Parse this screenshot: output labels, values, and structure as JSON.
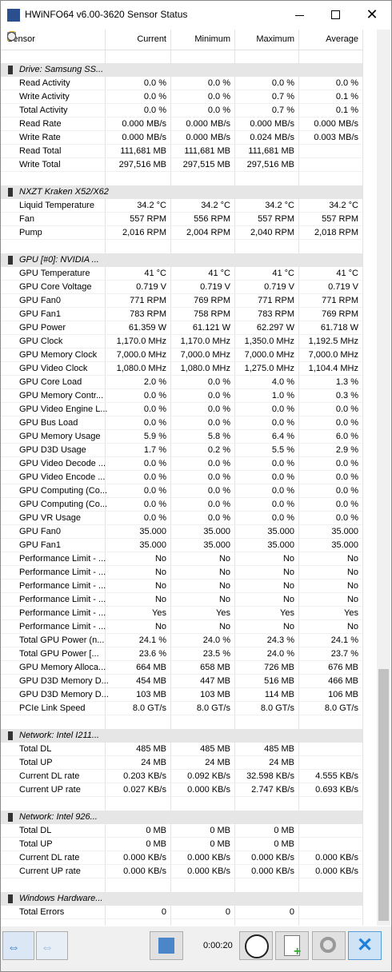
{
  "window": {
    "title": "HWiNFO64 v6.00-3620 Sensor Status"
  },
  "table": {
    "columns": [
      "Sensor",
      "Current",
      "Minimum",
      "Maximum",
      "Average"
    ],
    "sections": [
      {
        "name": "Drive: Samsung SS...",
        "rows": [
          [
            "Read Activity",
            "0.0 %",
            "0.0 %",
            "0.0 %",
            "0.0 %"
          ],
          [
            "Write Activity",
            "0.0 %",
            "0.0 %",
            "0.7 %",
            "0.1 %"
          ],
          [
            "Total Activity",
            "0.0 %",
            "0.0 %",
            "0.7 %",
            "0.1 %"
          ],
          [
            "Read Rate",
            "0.000 MB/s",
            "0.000 MB/s",
            "0.000 MB/s",
            "0.000 MB/s"
          ],
          [
            "Write Rate",
            "0.000 MB/s",
            "0.000 MB/s",
            "0.024 MB/s",
            "0.003 MB/s"
          ],
          [
            "Read Total",
            "111,681 MB",
            "111,681 MB",
            "111,681 MB",
            null
          ],
          [
            "Write Total",
            "297,516 MB",
            "297,515 MB",
            "297,516 MB",
            null
          ]
        ]
      },
      {
        "name": "NXZT Kraken X52/X62",
        "rows": [
          [
            "Liquid Temperature",
            "34.2 °C",
            "34.2 °C",
            "34.2 °C",
            "34.2 °C"
          ],
          [
            "Fan",
            "557 RPM",
            "556 RPM",
            "557 RPM",
            "557 RPM"
          ],
          [
            "Pump",
            "2,016 RPM",
            "2,004 RPM",
            "2,040 RPM",
            "2,018 RPM"
          ]
        ]
      },
      {
        "name": "GPU [#0]: NVIDIA ...",
        "rows": [
          [
            "GPU Temperature",
            "41 °C",
            "41 °C",
            "41 °C",
            "41 °C"
          ],
          [
            "GPU Core Voltage",
            "0.719 V",
            "0.719 V",
            "0.719 V",
            "0.719 V"
          ],
          [
            "GPU Fan0",
            "771 RPM",
            "769 RPM",
            "771 RPM",
            "771 RPM"
          ],
          [
            "GPU Fan1",
            "783 RPM",
            "758 RPM",
            "783 RPM",
            "769 RPM"
          ],
          [
            "GPU Power",
            "61.359 W",
            "61.121 W",
            "62.297 W",
            "61.718 W"
          ],
          [
            "GPU Clock",
            "1,170.0 MHz",
            "1,170.0 MHz",
            "1,350.0 MHz",
            "1,192.5 MHz"
          ],
          [
            "GPU Memory Clock",
            "7,000.0 MHz",
            "7,000.0 MHz",
            "7,000.0 MHz",
            "7,000.0 MHz"
          ],
          [
            "GPU Video Clock",
            "1,080.0 MHz",
            "1,080.0 MHz",
            "1,275.0 MHz",
            "1,104.4 MHz"
          ],
          [
            "GPU Core Load",
            "2.0 %",
            "0.0 %",
            "4.0 %",
            "1.3 %"
          ],
          [
            "GPU Memory Contr...",
            "0.0 %",
            "0.0 %",
            "1.0 %",
            "0.3 %"
          ],
          [
            "GPU Video Engine L...",
            "0.0 %",
            "0.0 %",
            "0.0 %",
            "0.0 %"
          ],
          [
            "GPU Bus Load",
            "0.0 %",
            "0.0 %",
            "0.0 %",
            "0.0 %"
          ],
          [
            "GPU Memory Usage",
            "5.9 %",
            "5.8 %",
            "6.4 %",
            "6.0 %"
          ],
          [
            "GPU D3D Usage",
            "1.7 %",
            "0.2 %",
            "5.5 %",
            "2.9 %"
          ],
          [
            "GPU Video Decode ...",
            "0.0 %",
            "0.0 %",
            "0.0 %",
            "0.0 %"
          ],
          [
            "GPU Video Encode ...",
            "0.0 %",
            "0.0 %",
            "0.0 %",
            "0.0 %"
          ],
          [
            "GPU Computing (Co...",
            "0.0 %",
            "0.0 %",
            "0.0 %",
            "0.0 %"
          ],
          [
            "GPU Computing (Co...",
            "0.0 %",
            "0.0 %",
            "0.0 %",
            "0.0 %"
          ],
          [
            "GPU VR Usage",
            "0.0 %",
            "0.0 %",
            "0.0 %",
            "0.0 %"
          ],
          [
            "GPU Fan0",
            "35.000",
            "35.000",
            "35.000",
            "35.000"
          ],
          [
            "GPU Fan1",
            "35.000",
            "35.000",
            "35.000",
            "35.000"
          ],
          [
            "Performance Limit - ...",
            "No",
            "No",
            "No",
            "No"
          ],
          [
            "Performance Limit - ...",
            "No",
            "No",
            "No",
            "No"
          ],
          [
            "Performance Limit - ...",
            "No",
            "No",
            "No",
            "No"
          ],
          [
            "Performance Limit - ...",
            "No",
            "No",
            "No",
            "No"
          ],
          [
            "Performance Limit - ...",
            "Yes",
            "Yes",
            "Yes",
            "Yes"
          ],
          [
            "Performance Limit - ...",
            "No",
            "No",
            "No",
            "No"
          ],
          [
            "Total GPU Power (n...",
            "24.1 %",
            "24.0 %",
            "24.3 %",
            "24.1 %"
          ],
          [
            "Total GPU Power [...",
            "23.6 %",
            "23.5 %",
            "24.0 %",
            "23.7 %"
          ],
          [
            "GPU Memory Alloca...",
            "664 MB",
            "658 MB",
            "726 MB",
            "676 MB"
          ],
          [
            "GPU D3D Memory D...",
            "454 MB",
            "447 MB",
            "516 MB",
            "466 MB"
          ],
          [
            "GPU D3D Memory D...",
            "103 MB",
            "103 MB",
            "114 MB",
            "106 MB"
          ],
          [
            "PCIe Link Speed",
            "8.0 GT/s",
            "8.0 GT/s",
            "8.0 GT/s",
            "8.0 GT/s"
          ]
        ]
      },
      {
        "name": "Network: Intel I211...",
        "rows": [
          [
            "Total DL",
            "485 MB",
            "485 MB",
            "485 MB",
            null
          ],
          [
            "Total UP",
            "24 MB",
            "24 MB",
            "24 MB",
            null
          ],
          [
            "Current DL rate",
            "0.203 KB/s",
            "0.092 KB/s",
            "32.598 KB/s",
            "4.555 KB/s"
          ],
          [
            "Current UP rate",
            "0.027 KB/s",
            "0.000 KB/s",
            "2.747 KB/s",
            "0.693 KB/s"
          ]
        ]
      },
      {
        "name": "Network: Intel 926...",
        "rows": [
          [
            "Total DL",
            "0 MB",
            "0 MB",
            "0 MB",
            null
          ],
          [
            "Total UP",
            "0 MB",
            "0 MB",
            "0 MB",
            null
          ],
          [
            "Current DL rate",
            "0.000 KB/s",
            "0.000 KB/s",
            "0.000 KB/s",
            "0.000 KB/s"
          ],
          [
            "Current UP rate",
            "0.000 KB/s",
            "0.000 KB/s",
            "0.000 KB/s",
            "0.000 KB/s"
          ]
        ]
      },
      {
        "name": "Windows Hardware...",
        "rows": [
          [
            "Total Errors",
            "0",
            "0",
            "0",
            null
          ]
        ]
      }
    ]
  },
  "footer": {
    "timer": "0:00:20"
  }
}
